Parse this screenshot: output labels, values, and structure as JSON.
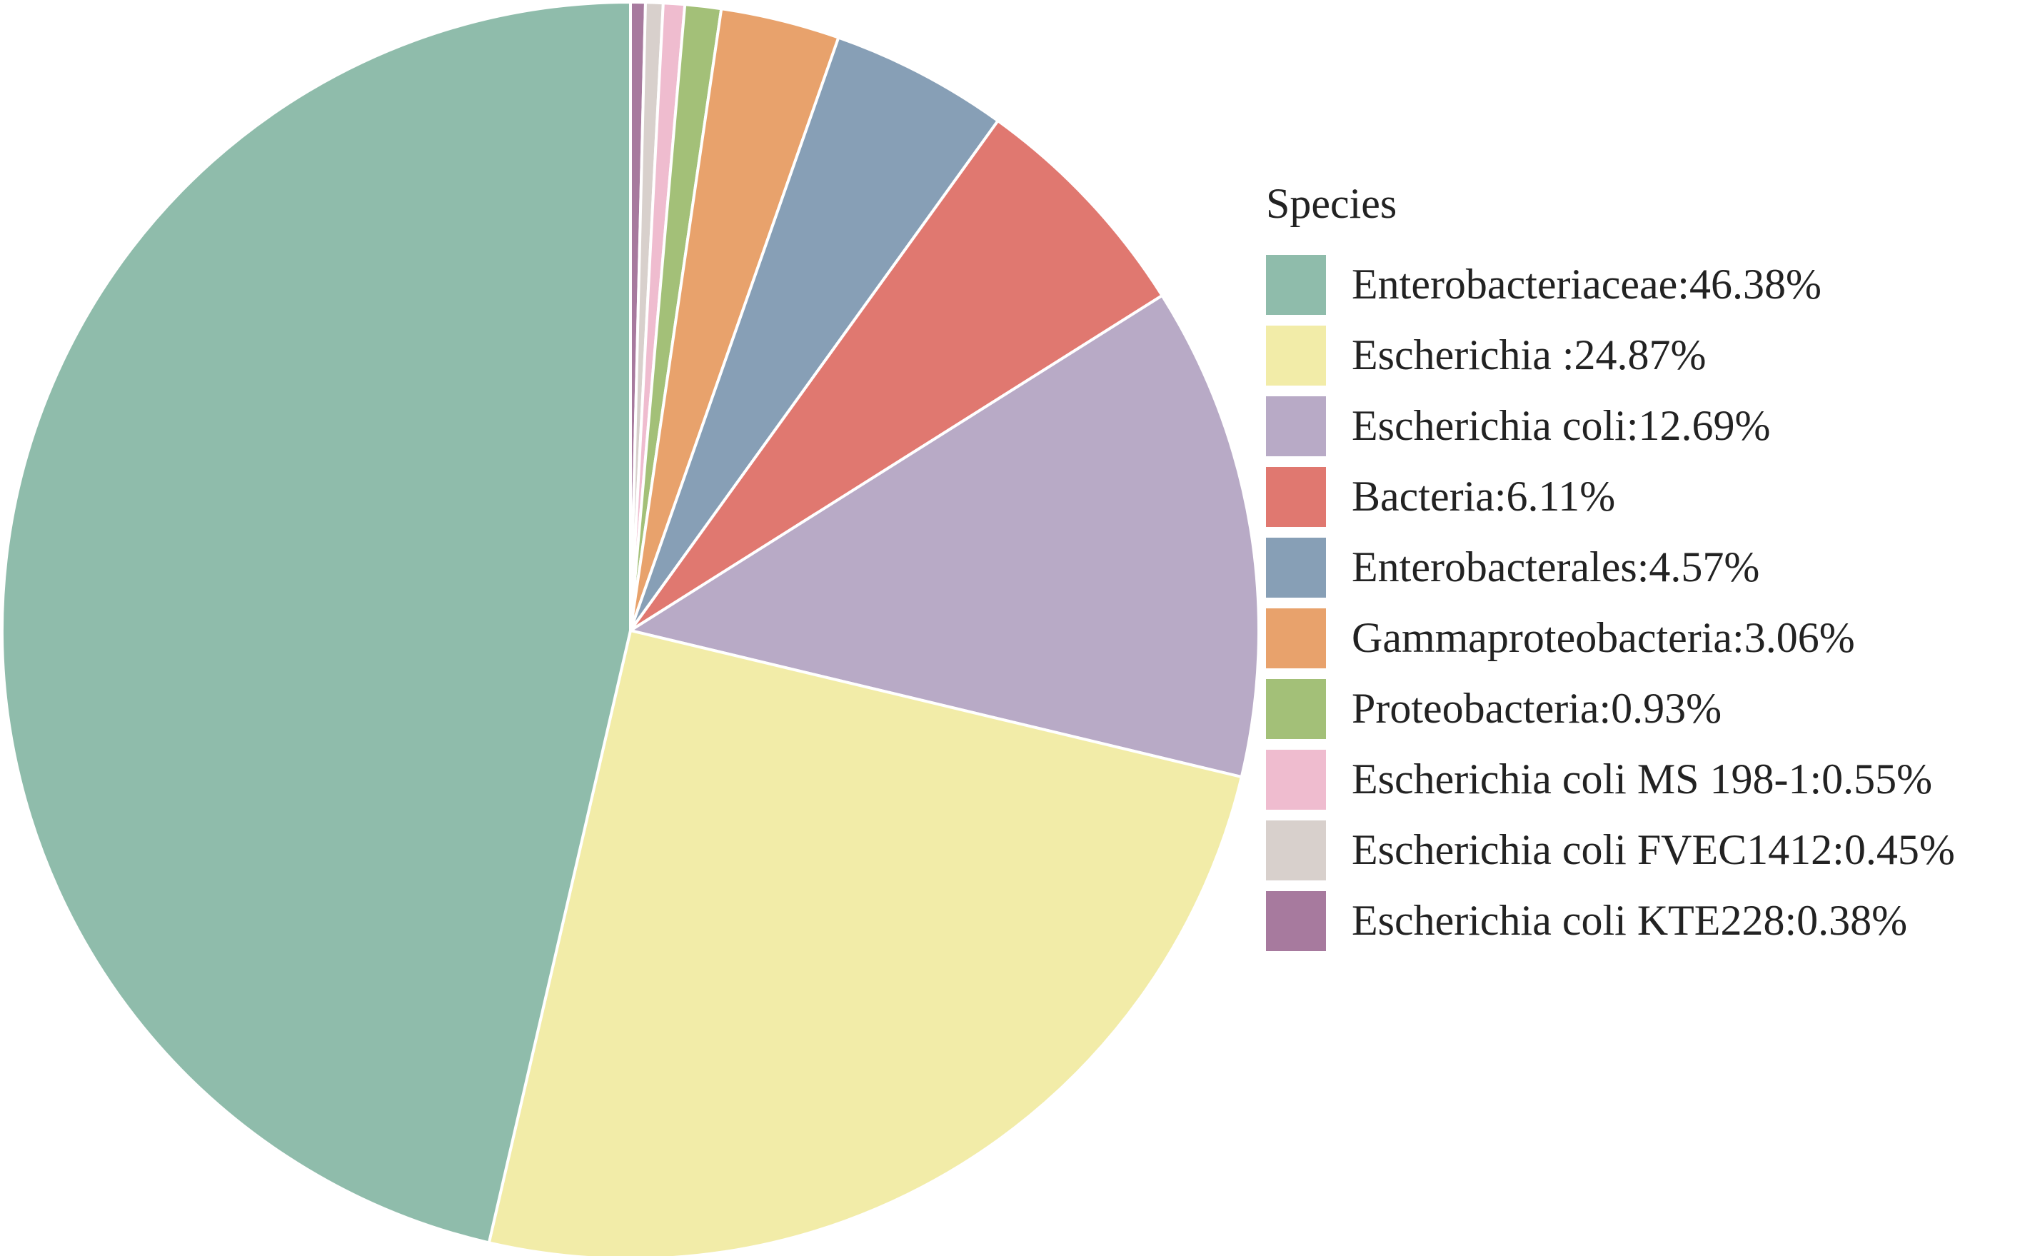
{
  "chart_data": {
    "type": "pie",
    "legend_title": "Species",
    "legend_position": "right",
    "start_angle_deg": 0,
    "direction": "clockwise",
    "slices": [
      {
        "label": "Enterobacteriaceae:46.38%",
        "value": 46.38,
        "color": "#8fbcab"
      },
      {
        "label": "Escherichia :24.87%",
        "value": 24.87,
        "color": "#f2eca8"
      },
      {
        "label": "Escherichia coli:12.69%",
        "value": 12.69,
        "color": "#b8aac6"
      },
      {
        "label": "Bacteria:6.11%",
        "value": 6.11,
        "color": "#e07870"
      },
      {
        "label": "Enterobacterales:4.57%",
        "value": 4.57,
        "color": "#879fb6"
      },
      {
        "label": "Gammaproteobacteria:3.06%",
        "value": 3.06,
        "color": "#e8a26c"
      },
      {
        "label": "Proteobacteria:0.93%",
        "value": 0.93,
        "color": "#a3c078"
      },
      {
        "label": "Escherichia coli MS 198-1:0.55%",
        "value": 0.55,
        "color": "#efbccf"
      },
      {
        "label": "Escherichia coli FVEC1412:0.45%",
        "value": 0.45,
        "color": "#d8d0cc"
      },
      {
        "label": "Escherichia coli KTE228:0.38%",
        "value": 0.38,
        "color": "#a77a9e"
      }
    ]
  }
}
